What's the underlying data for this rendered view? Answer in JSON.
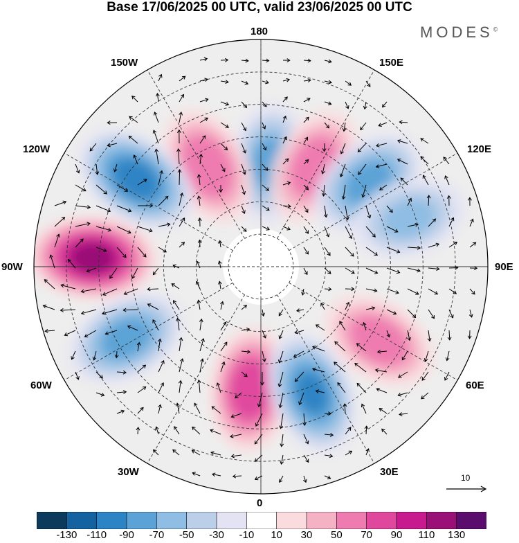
{
  "title": "Base 17/06/2025 00 UTC, valid 23/06/2025 00 UTC",
  "brand": "MODES",
  "brand_mark": "©",
  "longitude_labels": {
    "top": "180",
    "bottom": "0",
    "left": "90W",
    "right": "90E",
    "upper_left_1": "150W",
    "upper_left_2": "120W",
    "upper_right_1": "150E",
    "upper_right_2": "120E",
    "lower_left_1": "60W",
    "lower_left_2": "30W",
    "lower_right_1": "60E",
    "lower_right_2": "30E"
  },
  "reference_vector": {
    "value": "10",
    "icon": "arrow-right-icon"
  },
  "colorbar": {
    "colors": [
      "#0b3a5c",
      "#1562a0",
      "#2d84c4",
      "#5ba3d6",
      "#8fbde3",
      "#bccfe8",
      "#e3e3f3",
      "#ffffff",
      "#fadcde",
      "#f5b2c5",
      "#ef7cb0",
      "#e0489e",
      "#c71a8e",
      "#991177",
      "#5b0d6e"
    ],
    "tick_labels": [
      "-130",
      "-110",
      "-90",
      "-70",
      "-50",
      "-30",
      "-10",
      "10",
      "30",
      "50",
      "70",
      "90",
      "110",
      "130"
    ]
  },
  "anomaly_centres": [
    {
      "lon": 175,
      "lat": 58,
      "value": -75
    },
    {
      "lon": 152,
      "lat": 55,
      "value": 70
    },
    {
      "lon": 128,
      "lat": 48,
      "value": -85
    },
    {
      "lon": -152,
      "lat": 55,
      "value": 75
    },
    {
      "lon": -125,
      "lat": 43,
      "value": -110
    },
    {
      "lon": -93,
      "lat": 38,
      "value": 125
    },
    {
      "lon": -62,
      "lat": 43,
      "value": -85
    },
    {
      "lon": -5,
      "lat": 52,
      "value": 95
    },
    {
      "lon": 22,
      "lat": 48,
      "value": -100
    },
    {
      "lon": 58,
      "lat": 47,
      "value": 70
    },
    {
      "lon": 108,
      "lat": 42,
      "value": -60
    }
  ]
}
